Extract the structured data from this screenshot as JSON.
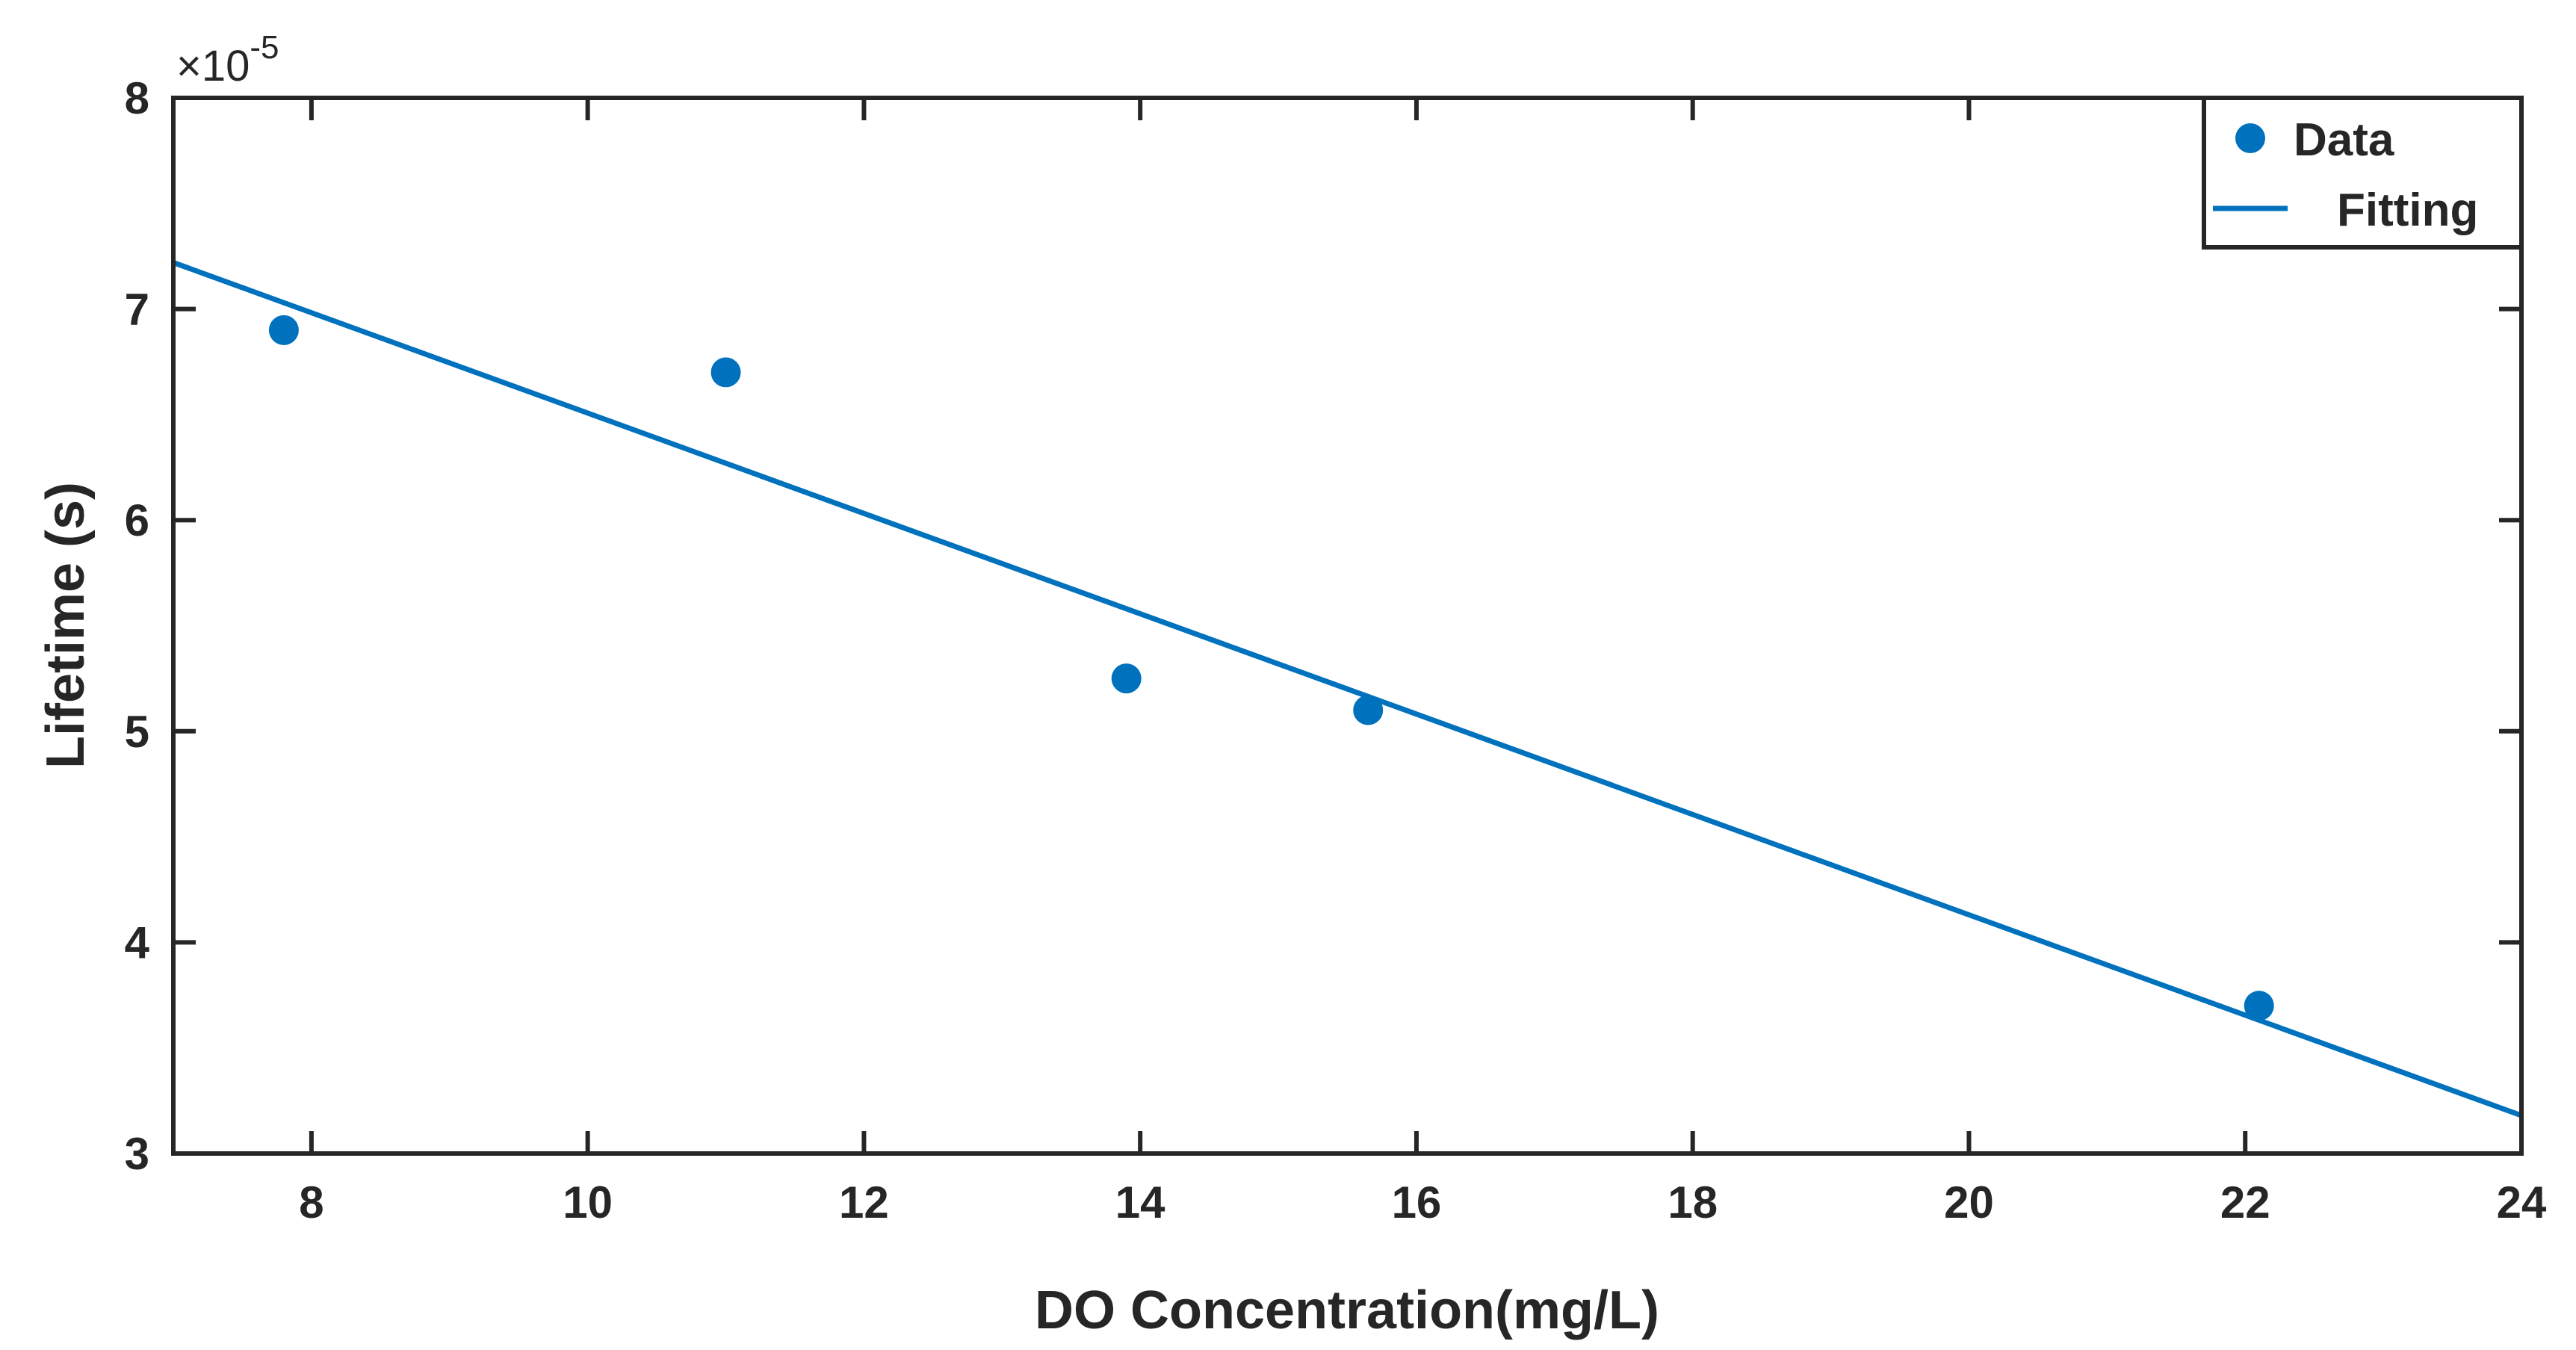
{
  "chart_data": {
    "type": "scatter",
    "title": "",
    "xlabel": "DO Concentration(mg/L)",
    "ylabel": "Lifetime (s)",
    "xlim": [
      7,
      24
    ],
    "ylim": [
      3,
      8
    ],
    "x_ticks": [
      8,
      10,
      12,
      14,
      16,
      18,
      20,
      22,
      24
    ],
    "y_ticks": [
      3,
      4,
      5,
      6,
      7,
      8
    ],
    "y_scale_exponent": "×10",
    "y_scale_power": "-5",
    "legend_position": "top-right",
    "grid": false,
    "colors": {
      "series": "#0072bd",
      "axes": "#262626"
    },
    "series": [
      {
        "name": "Data",
        "type": "scatter",
        "x": [
          7.8,
          11.0,
          13.9,
          15.65,
          22.1
        ],
        "y": [
          6.9,
          6.7,
          5.25,
          5.1,
          3.7
        ]
      },
      {
        "name": "Fitting",
        "type": "line",
        "x": [
          7.0,
          24.0
        ],
        "y": [
          7.22,
          3.18
        ]
      }
    ]
  }
}
